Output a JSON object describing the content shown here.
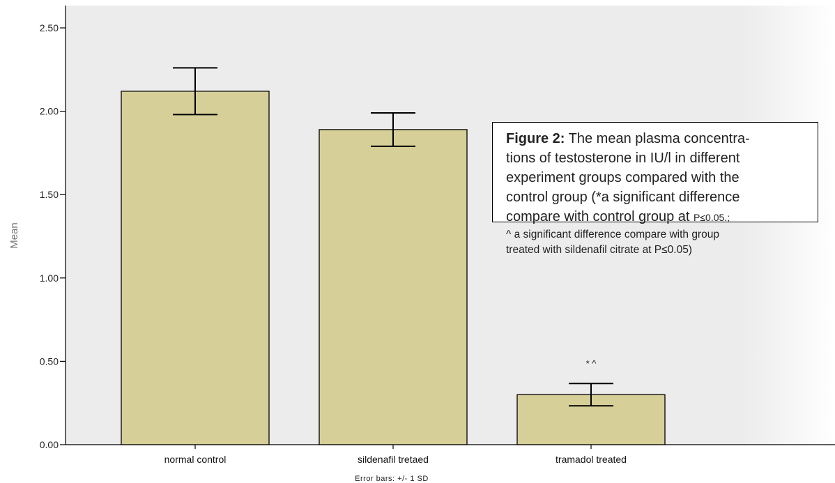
{
  "chart_data": {
    "type": "bar",
    "categories": [
      "normal control",
      "sildenafil tretaed",
      "tramadol treated"
    ],
    "values": [
      2.12,
      1.89,
      0.3
    ],
    "error_sd": [
      0.14,
      0.1,
      0.067
    ],
    "annotations": [
      "",
      "",
      "* ^"
    ],
    "ylabel": "Mean",
    "xlabel": "",
    "ylim": [
      0,
      2.5
    ],
    "yticks": [
      "0.00",
      "0.50",
      "1.00",
      "1.50",
      "2.00",
      "2.50"
    ],
    "footnote": "Error bars: +/- 1 SD",
    "colors": {
      "bar": "#d6cf98",
      "bar_edge": "#000000",
      "plot_bg": "#ececec",
      "error": "#000000"
    },
    "grid": false,
    "legend": "none"
  },
  "caption": {
    "label": "Figure 2:",
    "line1": " The mean plasma concentra-",
    "line2": "tions of testosterone in IU/l in different",
    "line3": "experiment groups compared with the",
    "line4": "control group (*a significant difference",
    "line5a": "compare with control group at ",
    "line5b": "P≤0.05.;",
    "line6": "^ a significant difference compare with group",
    "line7": "treated with sildenafil citrate at P≤0.05)"
  }
}
